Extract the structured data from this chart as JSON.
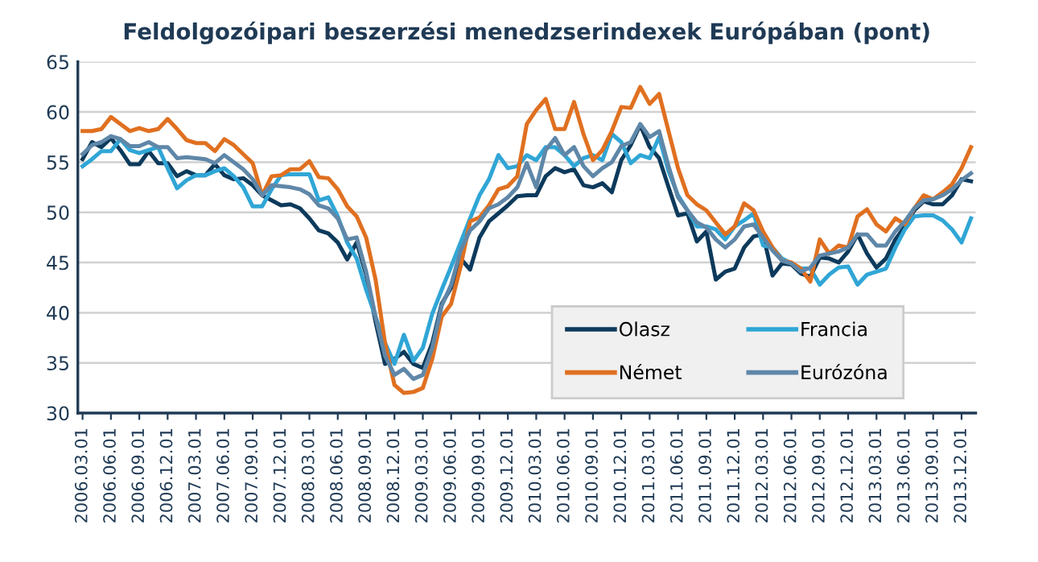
{
  "chart_data": {
    "type": "line",
    "title": "Feldolgozóipari beszerzési menedzserindexek Európában (pont)",
    "categories": [
      "2006.03.01",
      null,
      null,
      "2006.06.01",
      null,
      null,
      "2006.09.01",
      null,
      null,
      "2006.12.01",
      null,
      null,
      "2007.03.01",
      null,
      null,
      "2007.06.01",
      null,
      null,
      "2007.09.01",
      null,
      null,
      "2007.12.01",
      null,
      null,
      "2008.03.01",
      null,
      null,
      "2008.06.01",
      null,
      null,
      "2008.09.01",
      null,
      null,
      "2008.12.01",
      null,
      null,
      "2009.03.01",
      null,
      null,
      "2009.06.01",
      null,
      null,
      "2009.09.01",
      null,
      null,
      "2009.12.01",
      null,
      null,
      "2010.03.01",
      null,
      null,
      "2010.06.01",
      null,
      null,
      "2010.09.01",
      null,
      null,
      "2010.12.01",
      null,
      null,
      "2011.03.01",
      null,
      null,
      "2011.06.01",
      null,
      null,
      "2011.09.01",
      null,
      null,
      "2011.12.01",
      null,
      null,
      "2012.03.01",
      null,
      null,
      "2012.06.01",
      null,
      null,
      "2012.09.01",
      null,
      null,
      "2012.12.01",
      null,
      null,
      "2013.03.01",
      null,
      null,
      "2013.06.01",
      null,
      null,
      "2013.09.01",
      null,
      null,
      "2013.12.01",
      null
    ],
    "series": [
      {
        "name": "Olasz",
        "color": "#0d3a5c",
        "values": [
          55.3,
          57.0,
          56.5,
          57.4,
          56.2,
          54.8,
          54.8,
          56.1,
          54.9,
          54.9,
          53.6,
          54.1,
          53.7,
          53.7,
          54.8,
          53.7,
          53.3,
          53.4,
          52.7,
          51.7,
          51.2,
          50.7,
          50.8,
          50.4,
          49.4,
          48.2,
          47.9,
          47.0,
          45.3,
          47.0,
          43.8,
          39.1,
          34.9,
          35.4,
          36.1,
          34.9,
          34.5,
          37.0,
          40.9,
          42.5,
          45.4,
          44.3,
          47.5,
          49.1,
          49.9,
          50.7,
          51.6,
          51.7,
          51.7,
          53.6,
          54.4,
          54.0,
          54.3,
          52.7,
          52.5,
          52.9,
          52.0,
          55.2,
          56.7,
          58.7,
          56.5,
          55.4,
          52.5,
          49.7,
          49.9,
          47.1,
          48.1,
          43.3,
          44.1,
          44.4,
          46.5,
          47.6,
          47.8,
          43.7,
          44.9,
          44.8,
          43.9,
          43.6,
          45.5,
          45.4,
          45.0,
          46.1,
          47.8,
          45.9,
          44.5,
          45.4,
          47.3,
          48.6,
          50.2,
          51.1,
          50.8,
          50.8,
          51.7,
          53.3,
          53.1
        ]
      },
      {
        "name": "Francia",
        "color": "#30a6d6",
        "values": [
          54.6,
          55.3,
          56.1,
          56.1,
          57.3,
          56.2,
          55.9,
          56.2,
          56.5,
          54.4,
          52.4,
          53.2,
          53.7,
          53.7,
          54.1,
          54.4,
          53.6,
          52.5,
          50.6,
          50.6,
          52.3,
          53.7,
          53.8,
          53.8,
          53.8,
          51.2,
          51.5,
          49.6,
          47.0,
          45.4,
          42.3,
          39.6,
          37.0,
          34.9,
          37.8,
          35.2,
          36.5,
          39.9,
          42.3,
          44.6,
          47.0,
          49.4,
          51.7,
          53.3,
          55.7,
          54.4,
          54.6,
          55.7,
          55.2,
          56.5,
          56.5,
          55.7,
          54.6,
          55.4,
          55.7,
          55.2,
          57.8,
          57.0,
          54.9,
          55.7,
          55.4,
          57.5,
          54.1,
          51.7,
          50.2,
          48.6,
          48.6,
          48.3,
          47.3,
          48.6,
          49.2,
          49.9,
          46.7,
          46.5,
          45.4,
          44.9,
          44.4,
          44.4,
          42.8,
          43.8,
          44.5,
          44.6,
          42.8,
          43.8,
          44.1,
          44.4,
          46.5,
          48.3,
          49.6,
          49.7,
          49.7,
          49.2,
          48.3,
          47.0,
          49.4
        ]
      },
      {
        "name": "Német",
        "color": "#e07020",
        "values": [
          58.1,
          58.1,
          58.3,
          59.5,
          58.8,
          58.1,
          58.4,
          58.1,
          58.3,
          59.3,
          58.3,
          57.2,
          56.9,
          56.9,
          56.1,
          57.3,
          56.7,
          55.8,
          54.9,
          51.7,
          53.6,
          53.7,
          54.3,
          54.3,
          55.1,
          53.5,
          53.4,
          52.3,
          50.6,
          49.6,
          47.5,
          43.3,
          37.0,
          32.8,
          32.0,
          32.1,
          32.5,
          35.4,
          39.6,
          40.9,
          44.6,
          49.1,
          49.5,
          50.7,
          52.3,
          52.6,
          53.6,
          58.8,
          60.2,
          61.3,
          58.3,
          58.3,
          61.0,
          57.8,
          55.2,
          56.2,
          58.1,
          60.5,
          60.4,
          62.5,
          60.8,
          61.8,
          58.1,
          54.4,
          51.7,
          50.8,
          50.2,
          49.0,
          47.8,
          48.6,
          50.9,
          50.2,
          48.1,
          46.5,
          45.2,
          45.0,
          44.4,
          43.1,
          47.3,
          45.9,
          46.7,
          46.5,
          49.6,
          50.3,
          48.8,
          48.1,
          49.4,
          48.8,
          50.4,
          51.7,
          51.3,
          52.0,
          52.8,
          54.4,
          56.5
        ]
      },
      {
        "name": "Eurózóna",
        "color": "#5f87a8",
        "values": [
          55.8,
          56.7,
          57.0,
          57.6,
          57.3,
          56.6,
          56.6,
          57.0,
          56.5,
          56.5,
          55.4,
          55.5,
          55.4,
          55.3,
          54.9,
          55.7,
          55.0,
          54.3,
          53.3,
          51.7,
          52.7,
          52.6,
          52.5,
          52.3,
          51.8,
          50.7,
          50.4,
          49.4,
          47.3,
          47.5,
          44.1,
          39.6,
          35.7,
          33.8,
          34.4,
          33.4,
          33.8,
          36.5,
          40.7,
          42.8,
          46.2,
          48.2,
          49.1,
          50.4,
          50.8,
          51.5,
          52.5,
          54.9,
          52.5,
          56.2,
          57.4,
          55.7,
          56.5,
          54.6,
          53.6,
          54.4,
          55.0,
          56.6,
          57.0,
          58.8,
          57.5,
          58.1,
          54.6,
          51.5,
          50.2,
          49.0,
          48.5,
          47.3,
          46.5,
          47.3,
          48.6,
          48.8,
          47.5,
          46.2,
          45.2,
          44.9,
          44.1,
          44.5,
          45.7,
          45.9,
          46.1,
          46.5,
          47.8,
          47.8,
          46.7,
          46.7,
          48.1,
          49.1,
          50.4,
          51.2,
          51.3,
          51.7,
          52.3,
          53.2,
          53.9
        ]
      }
    ],
    "ylim": [
      30,
      65
    ],
    "yticks": [
      30,
      35,
      40,
      45,
      50,
      55,
      60,
      65
    ],
    "grid": "y",
    "legend": "bottom right",
    "marker": "none",
    "line_style": "solid"
  }
}
